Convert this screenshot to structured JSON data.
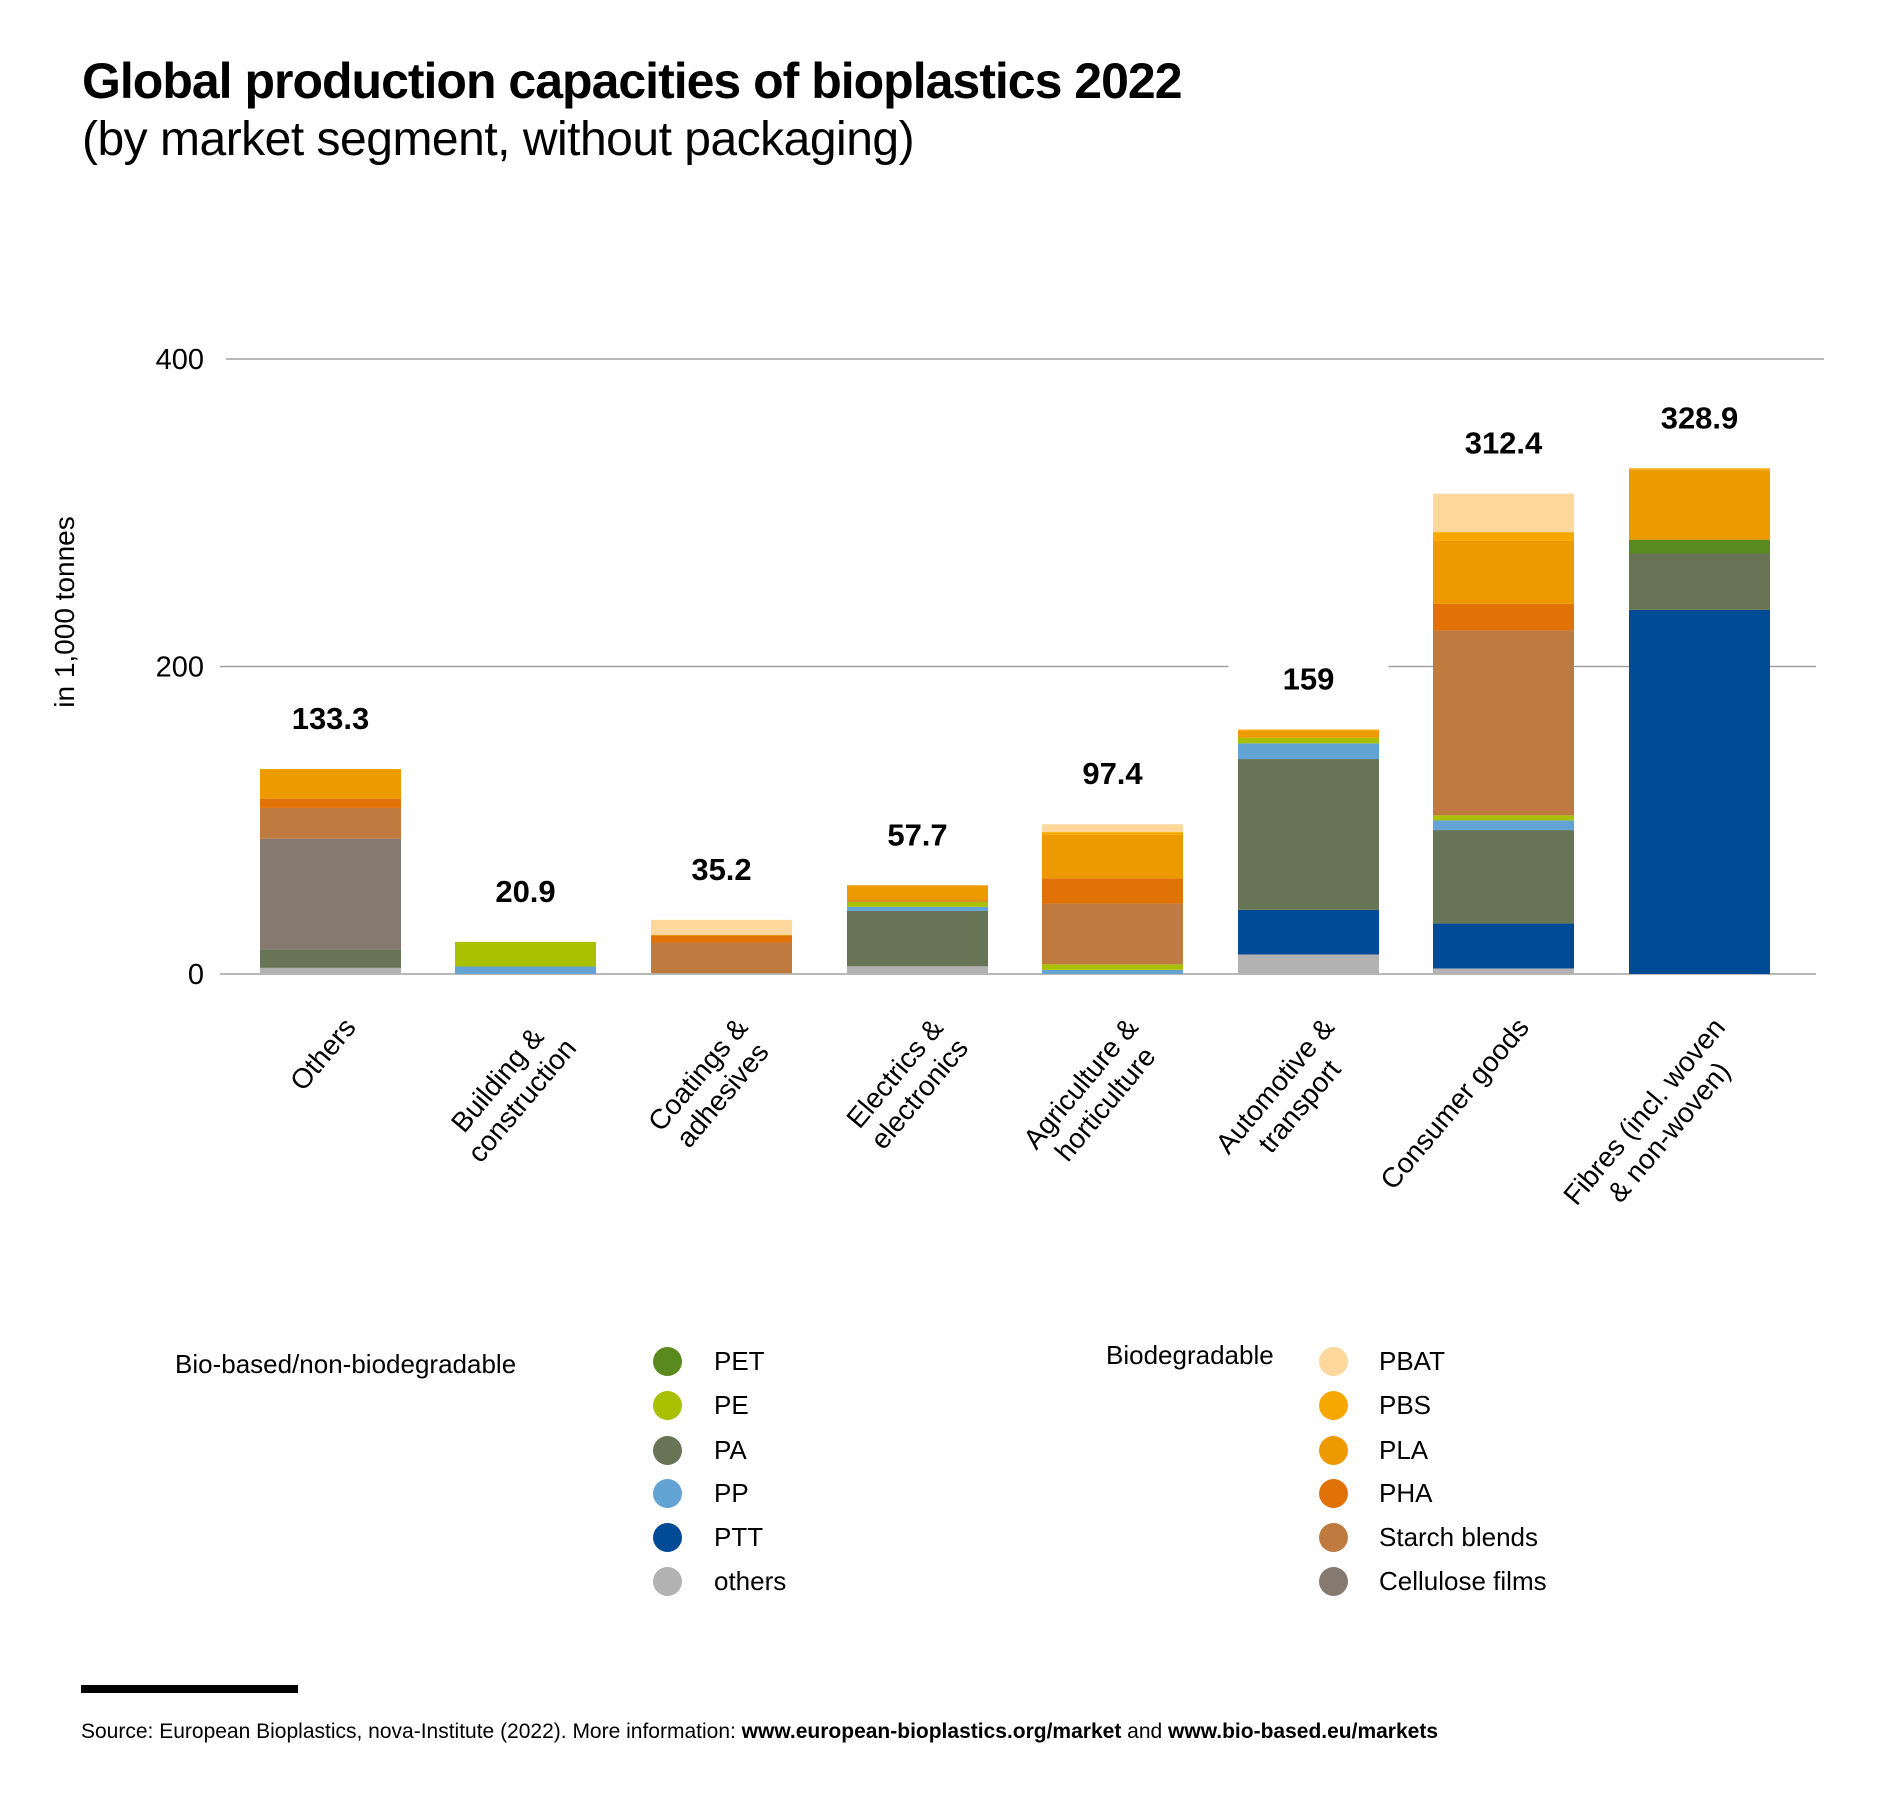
{
  "header": {
    "title": "Global production capacities of bioplastics 2022",
    "subtitle": "(by market segment, without packaging)"
  },
  "chart_data": {
    "type": "bar",
    "stacked": true,
    "title": "Global production capacities of bioplastics 2022",
    "subtitle": "(by market segment, without packaging)",
    "ylabel": "in 1,000 tonnes",
    "xlabel": "",
    "ylim": [
      0,
      400
    ],
    "yticks": [
      "0",
      "200",
      "400"
    ],
    "grid": true,
    "legend_position": "bottom",
    "categories": [
      "Others",
      "Building &\nconstruction",
      "Coatings &\nadhesives",
      "Electrics &\nelectronics",
      "Agriculture &\nhorticulture",
      "Automotive &\ntransport",
      "Consumer goods",
      "Fibres (incl. woven\n& non-woven)"
    ],
    "totals": [
      "133.3",
      "20.9",
      "35.2",
      "57.7",
      "97.4",
      "159",
      "312.4",
      "328.9"
    ],
    "series": [
      {
        "name": "others",
        "color": "#b2b2b2",
        "values": [
          4,
          0,
          0.5,
          5,
          0,
          12.7,
          3.6,
          0
        ]
      },
      {
        "name": "PTT",
        "color": "#004a96",
        "values": [
          0,
          0,
          0,
          0,
          0,
          29,
          29.2,
          236.8
        ]
      },
      {
        "name": "PA",
        "color": "#677556",
        "values": [
          12,
          0,
          0,
          36,
          0,
          98.1,
          60.8,
          36.7
        ]
      },
      {
        "name": "PP",
        "color": "#62a3d3",
        "values": [
          0,
          4.9,
          0,
          2.7,
          2.7,
          10.2,
          6.3,
          0
        ]
      },
      {
        "name": "PE",
        "color": "#a8c000",
        "values": [
          0,
          16,
          0,
          3.3,
          3.6,
          3.6,
          3.3,
          0
        ]
      },
      {
        "name": "PET",
        "color": "#5a8a1e",
        "values": [
          0,
          0,
          0,
          0,
          0,
          0,
          0,
          9
        ]
      },
      {
        "name": "Cellulose films",
        "color": "#867a70",
        "values": [
          72,
          0,
          0,
          0,
          0,
          0,
          0,
          0
        ]
      },
      {
        "name": "Starch blends",
        "color": "#bf7a3f",
        "values": [
          20,
          0,
          20,
          0,
          39.5,
          0,
          120.3,
          0
        ]
      },
      {
        "name": "PHA",
        "color": "#e17208",
        "values": [
          6,
          0,
          4.5,
          1,
          16.5,
          0,
          17.2,
          0
        ]
      },
      {
        "name": "PLA",
        "color": "#ec9a00",
        "values": [
          19,
          0,
          0.5,
          9.7,
          28.2,
          4.5,
          41,
          45.2
        ]
      },
      {
        "name": "PBS",
        "color": "#f7a800",
        "values": [
          0.3,
          0,
          0,
          0,
          1.8,
          0.9,
          5.7,
          1.2
        ]
      },
      {
        "name": "PBAT",
        "color": "#fdd79b",
        "values": [
          0,
          0,
          9.7,
          0,
          5.1,
          0,
          25,
          0
        ]
      }
    ]
  },
  "legend": {
    "groups": [
      {
        "title": "Bio-based/non-biodegradable",
        "items": [
          {
            "label": "PET",
            "color": "#5a8a1e"
          },
          {
            "label": "PE",
            "color": "#a8c000"
          },
          {
            "label": "PA",
            "color": "#677556"
          },
          {
            "label": "PP",
            "color": "#62a3d3"
          },
          {
            "label": "PTT",
            "color": "#004a96"
          },
          {
            "label": "others",
            "color": "#b2b2b2"
          }
        ]
      },
      {
        "title": "Biodegradable",
        "items": [
          {
            "label": "PBAT",
            "color": "#fdd79b"
          },
          {
            "label": "PBS",
            "color": "#f7a800"
          },
          {
            "label": "PLA",
            "color": "#ec9a00"
          },
          {
            "label": "PHA",
            "color": "#e17208"
          },
          {
            "label": "Starch blends",
            "color": "#bf7a3f"
          },
          {
            "label": "Cellulose films",
            "color": "#867a70"
          }
        ]
      }
    ]
  },
  "footer": {
    "source_prefix": "Source: European Bioplastics, nova-Institute (2022). More information: ",
    "link1": "www.european-bioplastics.org/market",
    "and": " and ",
    "link2": "www.bio-based.eu/markets"
  }
}
